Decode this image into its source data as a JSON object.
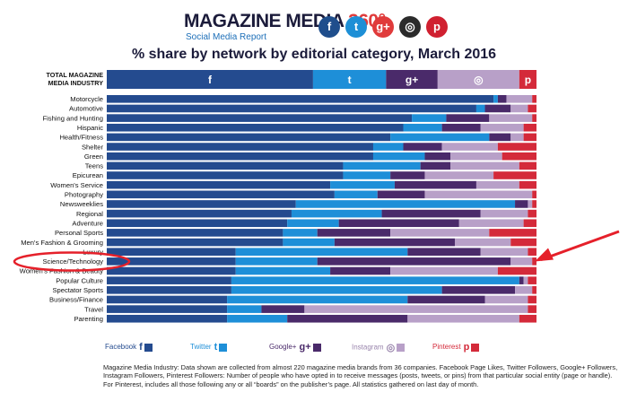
{
  "header": {
    "brand_main": "MAGAZINE MEDIA ",
    "brand_accent": "360°",
    "brand_sub": "Social Media Report",
    "icons": [
      {
        "name": "facebook-icon",
        "glyph": "f",
        "color": "#1f4e8c"
      },
      {
        "name": "twitter-icon",
        "glyph": "t",
        "color": "#1d8fd6"
      },
      {
        "name": "google-plus-icon",
        "glyph": "g+",
        "color": "#e03b3b"
      },
      {
        "name": "instagram-icon",
        "glyph": "◎",
        "color": "#2b2b2b"
      },
      {
        "name": "pinterest-icon",
        "glyph": "p",
        "color": "#d02030"
      }
    ]
  },
  "chart_data": {
    "type": "bar",
    "orientation": "horizontal",
    "stacked": "100%",
    "title": "% share by network by editorial category, March 2016",
    "total_label_lines": [
      "TOTAL MAGAZINE",
      "MEDIA INDUSTRY"
    ],
    "total_values": [
      48,
      17,
      12,
      19,
      4
    ],
    "series": [
      {
        "name": "Facebook",
        "color": "#244b8f",
        "glyph": "f"
      },
      {
        "name": "Twitter",
        "color": "#1e8fd8",
        "glyph": "t"
      },
      {
        "name": "Google+",
        "color": "#4a2a6a",
        "glyph": "g+"
      },
      {
        "name": "Instagram",
        "color": "#b8a0c8",
        "glyph": "◎"
      },
      {
        "name": "Pinterest",
        "color": "#d42a3a",
        "glyph": "p"
      }
    ],
    "categories": [
      "Motorcycle",
      "Automotive",
      "Fishing and Hunting",
      "Hispanic",
      "Health/Fitness",
      "Shelter",
      "Green",
      "Teens",
      "Epicurean",
      "Women's Service",
      "Photography",
      "Newsweeklies",
      "Regional",
      "Adventure",
      "Personal Sports",
      "Men's Fashion & Grooming",
      "Luxury",
      "Science/Technology",
      "Women's Fashion & Beauty",
      "Popular Culture",
      "Spectator Sports",
      "Business/Finance",
      "Travel",
      "Parenting"
    ],
    "values": [
      [
        90,
        1,
        2,
        6,
        1
      ],
      [
        86,
        2,
        6,
        4,
        2
      ],
      [
        71,
        8,
        10,
        10,
        1
      ],
      [
        69,
        9,
        9,
        10,
        3
      ],
      [
        66,
        23,
        5,
        3,
        3
      ],
      [
        62,
        7,
        9,
        13,
        9
      ],
      [
        62,
        12,
        6,
        12,
        8
      ],
      [
        55,
        18,
        7,
        16,
        4
      ],
      [
        55,
        11,
        8,
        16,
        10
      ],
      [
        52,
        15,
        19,
        10,
        4
      ],
      [
        53,
        10,
        11,
        25,
        1
      ],
      [
        44,
        51,
        3,
        1,
        1
      ],
      [
        43,
        21,
        23,
        11,
        2
      ],
      [
        42,
        12,
        28,
        15,
        3
      ],
      [
        41,
        8,
        17,
        23,
        11
      ],
      [
        41,
        12,
        28,
        13,
        6
      ],
      [
        30,
        40,
        17,
        11,
        2
      ],
      [
        30,
        19,
        45,
        5,
        1
      ],
      [
        30,
        22,
        14,
        25,
        9
      ],
      [
        29,
        67,
        1,
        1,
        2
      ],
      [
        29,
        49,
        17,
        4,
        1
      ],
      [
        28,
        42,
        18,
        10,
        2
      ],
      [
        28,
        8,
        10,
        52,
        2
      ],
      [
        28,
        14,
        28,
        26,
        4
      ]
    ]
  },
  "legend": [
    {
      "label": "Facebook"
    },
    {
      "label": "Twitter"
    },
    {
      "label": "Google+"
    },
    {
      "label": "Instagram"
    },
    {
      "label": "Pinterest"
    }
  ],
  "footnote": "Magazine Media Industry: Data shown are collected from almost 220 magazine media brands from 36 companies. Facebook Page Likes, Twitter Followers, Google+ Followers, Instagram Followers, Pinterest Followers: Number of people who have opted in to receive messages (posts, tweets, or pins) from that particular social entity (page or handle). For Pinterest, includes all those following any or all “boards” on the publisher’s page. All statistics gathered on last day of month."
}
